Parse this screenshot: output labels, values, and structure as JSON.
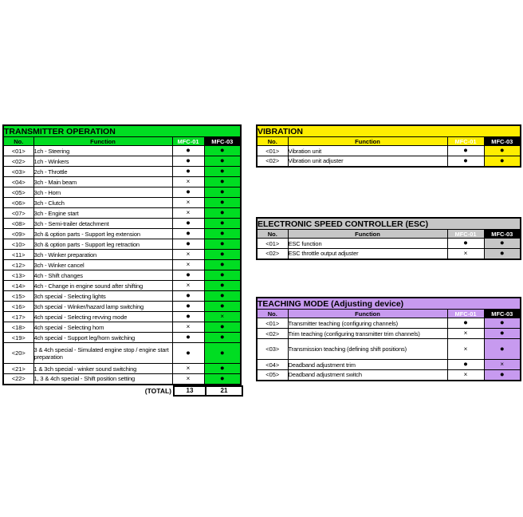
{
  "sheet": {
    "background_color": "#ffffff",
    "symbols": {
      "available": "●",
      "unavailable": "×"
    },
    "column_headers": {
      "no": "No.",
      "function": "Function",
      "mfc01": "MFC-01",
      "mfc03": "MFC-03"
    }
  },
  "tables": [
    {
      "id": "transmitter-operation",
      "title": "TRANSMITTER OPERATION",
      "theme_color": "#00dd22",
      "headers": {
        "no": "No.",
        "fn": "Function",
        "m01": "MFC-01",
        "m03": "MFC-03"
      },
      "rows": [
        {
          "no": "<01>",
          "fn": "1ch - Steering",
          "m01": "●",
          "m03": "●"
        },
        {
          "no": "<02>",
          "fn": "1ch - Winkers",
          "m01": "●",
          "m03": "●"
        },
        {
          "no": "<03>",
          "fn": "2ch - Throttle",
          "m01": "●",
          "m03": "●"
        },
        {
          "no": "<04>",
          "fn": "3ch - Main beam",
          "m01": "×",
          "m03": "●"
        },
        {
          "no": "<05>",
          "fn": "3ch - Horn",
          "m01": "●",
          "m03": "●"
        },
        {
          "no": "<06>",
          "fn": "3ch - Clutch",
          "m01": "×",
          "m03": "●"
        },
        {
          "no": "<07>",
          "fn": "3ch - Engine start",
          "m01": "×",
          "m03": "●"
        },
        {
          "no": "<08>",
          "fn": "3ch - Semi-trailer detachment",
          "m01": "●",
          "m03": "●"
        },
        {
          "no": "<09>",
          "fn": "3ch & option parts - Support leg extension",
          "m01": "●",
          "m03": "●"
        },
        {
          "no": "<10>",
          "fn": "3ch & option parts - Support leg retraction",
          "m01": "●",
          "m03": "●"
        },
        {
          "no": "<11>",
          "fn": "3ch - Winker preparation",
          "m01": "×",
          "m03": "●"
        },
        {
          "no": "<12>",
          "fn": "3ch - Winker cancel",
          "m01": "×",
          "m03": "●"
        },
        {
          "no": "<13>",
          "fn": "4ch - Shift changes",
          "m01": "●",
          "m03": "●"
        },
        {
          "no": "<14>",
          "fn": "4ch - Change in engine sound after shifting",
          "m01": "×",
          "m03": "●"
        },
        {
          "no": "<15>",
          "fn": "3ch special - Selecting lights",
          "m01": "●",
          "m03": "●"
        },
        {
          "no": "<16>",
          "fn": "3ch special - Winker/hazard lamp switching",
          "m01": "●",
          "m03": "●"
        },
        {
          "no": "<17>",
          "fn": "4ch special - Selecting revving mode",
          "m01": "●",
          "m03": "×"
        },
        {
          "no": "<18>",
          "fn": "4ch special - Selecting horn",
          "m01": "×",
          "m03": "●"
        },
        {
          "no": "<19>",
          "fn": "4ch special - Support leg/horn switching",
          "m01": "●",
          "m03": "●"
        },
        {
          "no": "<20>",
          "fn": "3 & 4ch special - Simulated engine stop / engine start preparation",
          "m01": "●",
          "m03": "●",
          "tall": true
        },
        {
          "no": "<21>",
          "fn": "1 & 3ch special - winker sound switching",
          "m01": "×",
          "m03": "●"
        },
        {
          "no": "<22>",
          "fn": "1, 3 & 4ch special - Shift position setting",
          "m01": "×",
          "m03": "●"
        }
      ],
      "total": {
        "label": "(TOTAL)",
        "mfc01": "13",
        "mfc03": "21"
      }
    },
    {
      "id": "vibration",
      "title": "VIBRATION",
      "theme_color": "#ffee00",
      "headers": {
        "no": "No.",
        "fn": "Function",
        "m01": "MFC-01",
        "m03": "MFC-03"
      },
      "rows": [
        {
          "no": "<01>",
          "fn": "Vibration unit",
          "m01": "●",
          "m03": "●"
        },
        {
          "no": "<02>",
          "fn": "Vibration unit adjuster",
          "m01": "●",
          "m03": "●"
        }
      ]
    },
    {
      "id": "esc",
      "title": "ELECTRONIC SPEED CONTROLLER (ESC)",
      "theme_color": "#c6c6c6",
      "headers": {
        "no": "No.",
        "fn": "Function",
        "m01": "MFC-01",
        "m03": "MFC-03"
      },
      "rows": [
        {
          "no": "<01>",
          "fn": "ESC function",
          "m01": "●",
          "m03": "●"
        },
        {
          "no": "<02>",
          "fn": "ESC throttle output adjuster",
          "m01": "×",
          "m03": "●"
        }
      ]
    },
    {
      "id": "teaching-mode",
      "title": "TEACHING MODE (Adjusting device)",
      "theme_color": "#c79aef",
      "headers": {
        "no": "No.",
        "fn": "Function",
        "m01": "MFC-01",
        "m03": "MFC-03"
      },
      "rows": [
        {
          "no": "<01>",
          "fn": "Transmitter teaching (configuring channels)",
          "m01": "●",
          "m03": "●"
        },
        {
          "no": "<02>",
          "fn": "Trim teaching (configuring transmitter trim channels)",
          "m01": "×",
          "m03": "●"
        },
        {
          "no": "<03>",
          "fn": "Transmission teaching (defining shift positions)",
          "m01": "×",
          "m03": "●",
          "tall": true
        },
        {
          "no": "<04>",
          "fn": "Deadband adjustment trim",
          "m01": "●",
          "m03": "×"
        },
        {
          "no": "<05>",
          "fn": "Deadband adjustment switch",
          "m01": "×",
          "m03": "●"
        }
      ]
    }
  ]
}
